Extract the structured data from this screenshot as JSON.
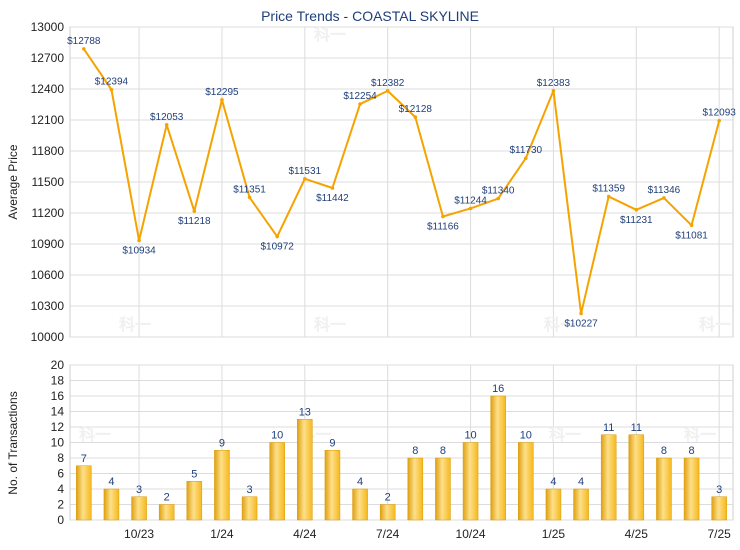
{
  "chart_data": [
    {
      "type": "line",
      "title": "Price Trends - COASTAL SKYLINE",
      "ylabel": "Average Price",
      "ylim": [
        10000,
        13000
      ],
      "yticks": [
        10000,
        10300,
        10600,
        10900,
        11200,
        11500,
        11800,
        12100,
        12400,
        12700,
        13000
      ],
      "grid": true,
      "series": [
        {
          "values": [
            12788,
            12394,
            10934,
            12053,
            11218,
            12295,
            11351,
            10972,
            11531,
            11442,
            12254,
            12382,
            12128,
            11166,
            11244,
            11340,
            11730,
            12383,
            10227,
            11359,
            11231,
            11346,
            11081,
            12093
          ],
          "labels": [
            "$12788",
            "$12394",
            "$10934",
            "$12053",
            "$11218",
            "$12295",
            "$11351",
            "$10972",
            "$11531",
            "$11442",
            "$12254",
            "$12382",
            "$12128",
            "$11166",
            "$11244",
            "$11340",
            "$11730",
            "$12383",
            "$10227",
            "$11359",
            "$11231",
            "$11346",
            "$11081",
            "$12093"
          ]
        }
      ],
      "color": "#f5a300"
    },
    {
      "type": "bar",
      "ylabel": "No. of Transactions",
      "ylim": [
        0,
        20
      ],
      "yticks": [
        0,
        2,
        4,
        6,
        8,
        10,
        12,
        14,
        16,
        18,
        20
      ],
      "grid": true,
      "values": [
        7,
        4,
        3,
        2,
        5,
        9,
        3,
        10,
        13,
        9,
        4,
        2,
        8,
        8,
        10,
        16,
        10,
        4,
        4,
        11,
        11,
        8,
        8,
        3
      ],
      "xtick_labels": [
        "10/23",
        "1/24",
        "4/24",
        "7/24",
        "10/24",
        "1/25",
        "4/25",
        "7/25"
      ],
      "xtick_positions": [
        2.5,
        5.5,
        8.5,
        11.5,
        14.5,
        17.5,
        20.5,
        23.5
      ],
      "colors": {
        "bar_light": "#fde08a",
        "bar_dark": "#e0a010",
        "bar_mid": "#f6b81c"
      }
    }
  ],
  "watermark": "科一"
}
